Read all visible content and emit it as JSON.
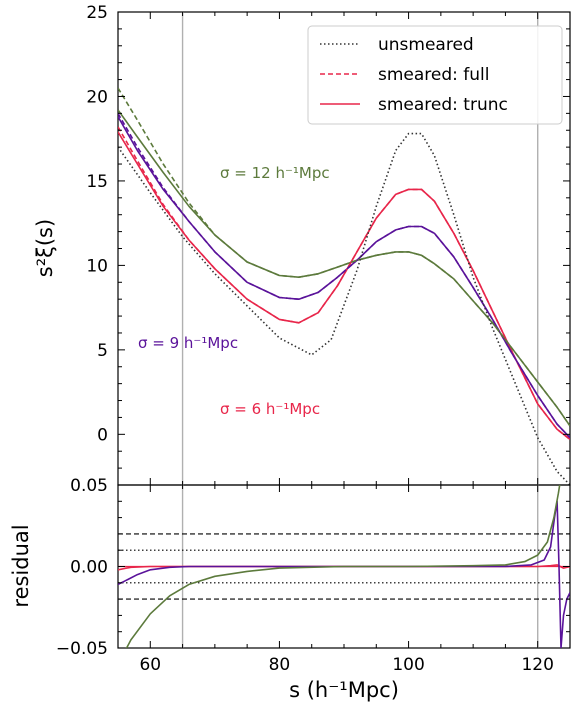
{
  "chart_data": [
    {
      "type": "line",
      "panel": "main",
      "ylabel": "s²ξ(s)",
      "xlim": [
        55,
        125
      ],
      "ylim": [
        -3,
        25
      ],
      "yticks": [
        0,
        5,
        10,
        15,
        20,
        25
      ],
      "ytick_labels": [
        "0",
        "5",
        "10",
        "15",
        "20",
        "25"
      ],
      "vertical_lines": [
        65,
        120
      ],
      "legend": {
        "placement": "top-right",
        "entries": [
          {
            "label": "unsmeared",
            "style": "dotted",
            "color": "#333333"
          },
          {
            "label": "smeared: full",
            "style": "dashed",
            "color": "#e8264a"
          },
          {
            "label": "smeared: trunc",
            "style": "solid",
            "color": "#e8264a"
          }
        ]
      },
      "annotations": [
        {
          "text": "σ = 12 h⁻¹Mpc",
          "color": "#5c7a3c"
        },
        {
          "text": "σ = 9 h⁻¹Mpc",
          "color": "#5a139a"
        },
        {
          "text": "σ = 6 h⁻¹Mpc",
          "color": "#e8264a"
        }
      ],
      "series": [
        {
          "name": "unsmeared",
          "color": "#333333",
          "style": "dotted",
          "x": [
            55,
            60,
            65,
            70,
            75,
            80,
            85,
            88,
            92,
            95,
            98,
            100,
            102,
            104,
            107,
            110,
            113,
            116,
            120,
            123,
            125
          ],
          "y": [
            17.0,
            14.3,
            11.7,
            9.5,
            7.6,
            5.7,
            4.7,
            5.6,
            9.7,
            13.5,
            16.8,
            17.8,
            17.8,
            16.5,
            13.0,
            9.3,
            6.3,
            3.5,
            -0.2,
            -2.2,
            -3.0
          ]
        },
        {
          "name": "smeared: full (σ=6)",
          "color": "#e8264a",
          "style": "dashed",
          "x": [
            55,
            58,
            62,
            66,
            70,
            75,
            80,
            83,
            86,
            89,
            92,
            95,
            98,
            100,
            102,
            104,
            107,
            110,
            113,
            116,
            120,
            123,
            125
          ],
          "y": [
            18.2,
            16.2,
            13.6,
            11.5,
            9.8,
            8.0,
            6.8,
            6.6,
            7.2,
            8.8,
            10.8,
            12.8,
            14.2,
            14.5,
            14.5,
            13.8,
            11.9,
            9.7,
            7.3,
            4.9,
            1.8,
            0.3,
            -0.3
          ]
        },
        {
          "name": "smeared: full (σ=9)",
          "color": "#5a139a",
          "style": "dashed",
          "x": [
            55,
            58,
            62,
            66,
            70,
            75,
            80,
            83,
            86,
            89,
            92,
            95,
            98,
            100,
            102,
            104,
            107,
            110,
            113,
            116,
            120,
            123,
            125
          ],
          "y": [
            19.0,
            17.0,
            14.6,
            12.6,
            10.8,
            9.0,
            8.1,
            8.0,
            8.4,
            9.3,
            10.3,
            11.4,
            12.1,
            12.3,
            12.3,
            11.9,
            10.5,
            8.7,
            6.8,
            4.8,
            2.3,
            0.6,
            -0.2
          ]
        },
        {
          "name": "smeared: full (σ=12)",
          "color": "#5c7a3c",
          "style": "dashed",
          "x": [
            55,
            58,
            62,
            66,
            70,
            75,
            80,
            83,
            86,
            89,
            92,
            95,
            98,
            100,
            102,
            104,
            107,
            110,
            113,
            116,
            120,
            123,
            125
          ],
          "y": [
            20.5,
            18.6,
            16.0,
            13.7,
            11.8,
            10.2,
            9.4,
            9.3,
            9.5,
            9.9,
            10.3,
            10.6,
            10.8,
            10.8,
            10.6,
            10.1,
            9.2,
            7.9,
            6.6,
            5.1,
            3.1,
            1.6,
            0.5
          ]
        },
        {
          "name": "smeared: trunc (σ=6)",
          "color": "#e8264a",
          "style": "solid",
          "x": [
            55,
            58,
            62,
            66,
            70,
            75,
            80,
            83,
            86,
            89,
            92,
            95,
            98,
            100,
            102,
            104,
            107,
            110,
            113,
            116,
            120,
            123,
            125
          ],
          "y": [
            17.9,
            16.0,
            13.5,
            11.5,
            9.8,
            8.0,
            6.8,
            6.6,
            7.2,
            8.8,
            10.8,
            12.8,
            14.2,
            14.5,
            14.5,
            13.8,
            11.9,
            9.7,
            7.3,
            4.9,
            1.8,
            0.3,
            -0.3
          ]
        },
        {
          "name": "smeared: trunc (σ=9)",
          "color": "#5a139a",
          "style": "solid",
          "x": [
            55,
            58,
            62,
            66,
            70,
            75,
            80,
            83,
            86,
            89,
            92,
            95,
            98,
            100,
            102,
            104,
            107,
            110,
            113,
            116,
            120,
            123,
            125
          ],
          "y": [
            18.8,
            16.8,
            14.5,
            12.6,
            10.8,
            9.0,
            8.1,
            8.0,
            8.4,
            9.3,
            10.3,
            11.4,
            12.1,
            12.3,
            12.3,
            11.9,
            10.5,
            8.7,
            6.8,
            4.8,
            2.3,
            0.6,
            -0.2
          ]
        },
        {
          "name": "smeared: trunc (σ=12)",
          "color": "#5c7a3c",
          "style": "solid",
          "x": [
            55,
            58,
            62,
            66,
            70,
            75,
            80,
            83,
            86,
            89,
            92,
            95,
            98,
            100,
            102,
            104,
            107,
            110,
            113,
            116,
            120,
            123,
            125
          ],
          "y": [
            19.2,
            17.6,
            15.5,
            13.5,
            11.8,
            10.2,
            9.4,
            9.3,
            9.5,
            9.9,
            10.3,
            10.6,
            10.8,
            10.8,
            10.6,
            10.1,
            9.2,
            7.9,
            6.6,
            5.1,
            3.1,
            1.6,
            0.5
          ]
        }
      ]
    },
    {
      "type": "line",
      "panel": "residual",
      "xlabel": "s (h⁻¹Mpc)",
      "ylabel": "residual",
      "xlim": [
        55,
        125
      ],
      "ylim": [
        -0.05,
        0.05
      ],
      "xticks": [
        60,
        80,
        100,
        120
      ],
      "xtick_labels": [
        "60",
        "80",
        "100",
        "120"
      ],
      "yticks": [
        -0.05,
        0.0,
        0.05
      ],
      "ytick_labels": [
        "−0.05",
        "0.00",
        "0.05"
      ],
      "vertical_lines": [
        65,
        120
      ],
      "reference_lines": [
        {
          "y": 0.02,
          "style": "dashed"
        },
        {
          "y": -0.02,
          "style": "dashed"
        },
        {
          "y": 0.01,
          "style": "dotted"
        },
        {
          "y": -0.01,
          "style": "dotted"
        }
      ],
      "series": [
        {
          "name": "σ=6",
          "color": "#e8264a",
          "style": "solid",
          "x": [
            55,
            57,
            60,
            80,
            100,
            115,
            120,
            122,
            123,
            124,
            125
          ],
          "y": [
            -0.002,
            -0.0005,
            0.0,
            0.0,
            0.0,
            0.0,
            0.0,
            0.0005,
            0.001,
            -0.001,
            0.0
          ]
        },
        {
          "name": "σ=9",
          "color": "#5a139a",
          "style": "solid",
          "x": [
            55,
            56,
            58,
            60,
            63,
            66,
            70,
            80,
            100,
            115,
            119,
            121,
            122,
            122.6,
            123.0,
            123.3,
            123.6,
            124.0,
            124.5,
            125
          ],
          "y": [
            -0.011,
            -0.009,
            -0.005,
            -0.002,
            -0.0005,
            0.0,
            0.0,
            0.0,
            0.0,
            0.0,
            0.001,
            0.004,
            0.012,
            0.03,
            0.04,
            0.0,
            -0.05,
            -0.03,
            -0.02,
            -0.016
          ]
        },
        {
          "name": "σ=12",
          "color": "#5c7a3c",
          "style": "solid",
          "x": [
            55,
            57,
            60,
            63,
            66,
            70,
            75,
            80,
            90,
            100,
            110,
            115,
            118,
            120,
            121.5,
            122.5,
            123.2,
            123.6
          ],
          "y": [
            -0.06,
            -0.045,
            -0.029,
            -0.018,
            -0.011,
            -0.006,
            -0.003,
            -0.001,
            0.0,
            0.0,
            0.0005,
            0.001,
            0.003,
            0.007,
            0.015,
            0.03,
            0.045,
            0.055
          ]
        }
      ]
    }
  ]
}
